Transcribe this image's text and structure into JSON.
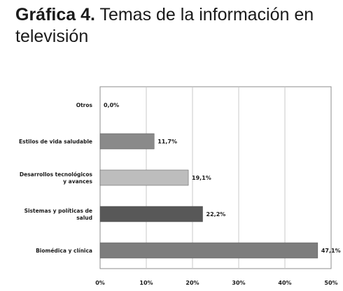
{
  "header": {
    "title_bold": "Gráfica 4.",
    "title_rest": "Temas de la información en televisión"
  },
  "chart_data": {
    "type": "bar",
    "orientation": "horizontal",
    "title": "",
    "xlabel": "",
    "ylabel": "",
    "categories": [
      "Otros",
      "Estilos de vida saludable",
      "Desarrollos tecnológicos y avances",
      "Sistemas y políticas de salud",
      "Biomédica y clínica"
    ],
    "category_lines": [
      [
        "Otros"
      ],
      [
        "Estilos de vida saludable"
      ],
      [
        "Desarrollos tecnológicos",
        "y avances"
      ],
      [
        "Sistemas y políticas de",
        "salud"
      ],
      [
        "Biomédica y clínica"
      ]
    ],
    "values": [
      0.0,
      11.7,
      19.1,
      22.2,
      47.1
    ],
    "value_labels": [
      "0,0%",
      "11,7%",
      "19,1%",
      "22,2%",
      "47,1%"
    ],
    "bar_colors": [
      "#7a7a7a",
      "#8a8a8a",
      "#bdbdbd",
      "#585858",
      "#7d7d7d"
    ],
    "xlim": [
      0,
      50
    ],
    "x_ticks": [
      0,
      10,
      20,
      30,
      40,
      50
    ],
    "x_tick_labels": [
      "0%",
      "10%",
      "20%",
      "30%",
      "40%",
      "50%"
    ],
    "grid": true,
    "legend": "none"
  }
}
